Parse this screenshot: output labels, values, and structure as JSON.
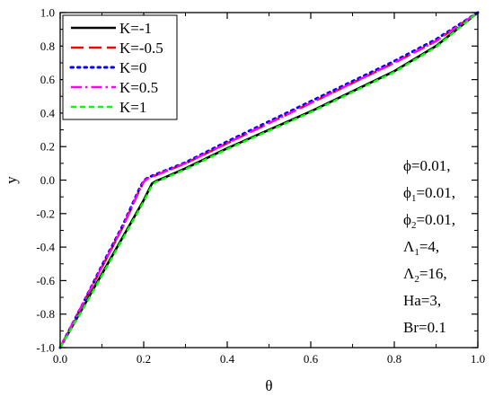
{
  "chart_data": {
    "type": "line",
    "title": "",
    "xlabel": "θ",
    "ylabel": "y",
    "xlim": [
      0.0,
      1.0
    ],
    "ylim": [
      -1.0,
      1.0
    ],
    "x_ticks": [
      "0.0",
      "0.2",
      "0.4",
      "0.6",
      "0.8",
      "1.0"
    ],
    "y_ticks": [
      "-1.0",
      "-0.8",
      "-0.6",
      "-0.4",
      "-0.2",
      "0.0",
      "0.2",
      "0.4",
      "0.6",
      "0.8",
      "1.0"
    ],
    "grid": false,
    "legend_position": "top-left",
    "series": [
      {
        "name": "K=-1",
        "color": "#000000",
        "dash": "solid",
        "points": [
          [
            0.0,
            -1.0
          ],
          [
            0.05,
            -0.78
          ],
          [
            0.1,
            -0.56
          ],
          [
            0.15,
            -0.34
          ],
          [
            0.2,
            -0.12
          ],
          [
            0.22,
            -0.02
          ],
          [
            0.23,
            -0.005
          ],
          [
            0.25,
            0.015
          ],
          [
            0.3,
            0.07
          ],
          [
            0.4,
            0.19
          ],
          [
            0.5,
            0.3
          ],
          [
            0.6,
            0.41
          ],
          [
            0.7,
            0.53
          ],
          [
            0.8,
            0.65
          ],
          [
            0.9,
            0.8
          ],
          [
            1.0,
            1.0
          ]
        ]
      },
      {
        "name": "K=-0.5",
        "color": "#ff0000",
        "dash": "long-dash",
        "points": [
          [
            0.0,
            -1.0
          ],
          [
            0.05,
            -0.76
          ],
          [
            0.1,
            -0.52
          ],
          [
            0.15,
            -0.28
          ],
          [
            0.19,
            -0.06
          ],
          [
            0.2,
            -0.01
          ],
          [
            0.21,
            0.01
          ],
          [
            0.25,
            0.05
          ],
          [
            0.3,
            0.1
          ],
          [
            0.4,
            0.22
          ],
          [
            0.5,
            0.34
          ],
          [
            0.6,
            0.46
          ],
          [
            0.7,
            0.58
          ],
          [
            0.8,
            0.7
          ],
          [
            0.9,
            0.83
          ],
          [
            1.0,
            1.0
          ]
        ]
      },
      {
        "name": "K=0",
        "color": "#0000ff",
        "dash": "dotted",
        "points": [
          [
            0.0,
            -1.0
          ],
          [
            0.05,
            -0.76
          ],
          [
            0.1,
            -0.51
          ],
          [
            0.15,
            -0.27
          ],
          [
            0.19,
            -0.05
          ],
          [
            0.2,
            -0.005
          ],
          [
            0.21,
            0.015
          ],
          [
            0.25,
            0.055
          ],
          [
            0.3,
            0.105
          ],
          [
            0.4,
            0.23
          ],
          [
            0.5,
            0.35
          ],
          [
            0.6,
            0.47
          ],
          [
            0.7,
            0.59
          ],
          [
            0.8,
            0.71
          ],
          [
            0.9,
            0.84
          ],
          [
            1.0,
            1.0
          ]
        ]
      },
      {
        "name": "K=0.5",
        "color": "#ff00ff",
        "dash": "dash-dot",
        "points": [
          [
            0.0,
            -1.0
          ],
          [
            0.05,
            -0.76
          ],
          [
            0.1,
            -0.52
          ],
          [
            0.15,
            -0.28
          ],
          [
            0.19,
            -0.06
          ],
          [
            0.2,
            -0.01
          ],
          [
            0.21,
            0.01
          ],
          [
            0.25,
            0.05
          ],
          [
            0.3,
            0.1
          ],
          [
            0.4,
            0.22
          ],
          [
            0.5,
            0.34
          ],
          [
            0.6,
            0.46
          ],
          [
            0.7,
            0.58
          ],
          [
            0.8,
            0.7
          ],
          [
            0.9,
            0.83
          ],
          [
            1.0,
            1.0
          ]
        ]
      },
      {
        "name": "K=1",
        "color": "#00ff00",
        "dash": "short-dash",
        "points": [
          [
            0.0,
            -1.0
          ],
          [
            0.05,
            -0.79
          ],
          [
            0.1,
            -0.57
          ],
          [
            0.15,
            -0.35
          ],
          [
            0.2,
            -0.13
          ],
          [
            0.22,
            -0.03
          ],
          [
            0.23,
            -0.01
          ],
          [
            0.25,
            0.01
          ],
          [
            0.3,
            0.065
          ],
          [
            0.4,
            0.185
          ],
          [
            0.5,
            0.295
          ],
          [
            0.6,
            0.405
          ],
          [
            0.7,
            0.525
          ],
          [
            0.8,
            0.645
          ],
          [
            0.9,
            0.795
          ],
          [
            1.0,
            1.0
          ]
        ]
      }
    ],
    "annotations": [
      {
        "base": "ϕ",
        "sub": "",
        "rest": "=0.01,"
      },
      {
        "base": "ϕ",
        "sub": "1",
        "rest": "=0.01,"
      },
      {
        "base": "ϕ",
        "sub": "2",
        "rest": "=0.01,"
      },
      {
        "base": "Λ",
        "sub": "1",
        "rest": "=4,"
      },
      {
        "base": "Λ",
        "sub": "2",
        "rest": "=16,"
      },
      {
        "base": "Ha=3,",
        "sub": "",
        "rest": ""
      },
      {
        "base": "Br=0.1",
        "sub": "",
        "rest": ""
      }
    ]
  }
}
